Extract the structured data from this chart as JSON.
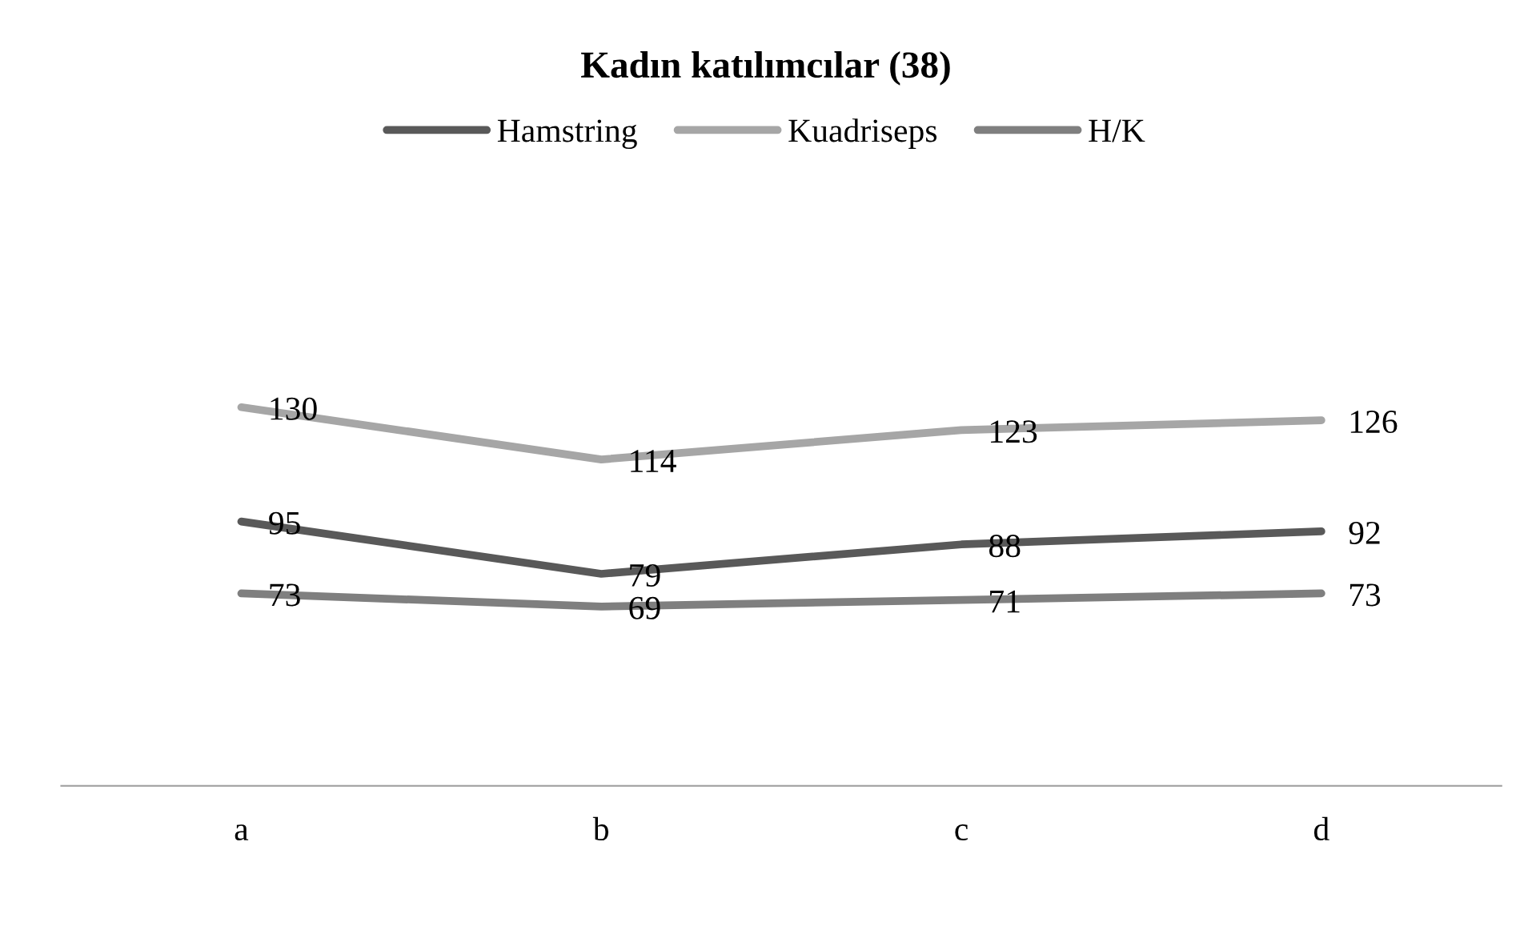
{
  "chart_data": {
    "type": "line",
    "title": "Kadın katılımcılar (38)",
    "categories": [
      "a",
      "b",
      "c",
      "d"
    ],
    "series": [
      {
        "name": "Hamstring",
        "color": "#595959",
        "values": [
          95,
          79,
          88,
          92
        ]
      },
      {
        "name": "Kuadriseps",
        "color": "#a6a6a6",
        "values": [
          130,
          114,
          123,
          126
        ]
      },
      {
        "name": "H/K",
        "color": "#7f7f7f",
        "values": [
          73,
          69,
          71,
          73
        ]
      }
    ],
    "data_labels": true,
    "legend": "top",
    "grid": false,
    "marker": "none",
    "line_style": "solid",
    "tick_labels": "x"
  }
}
